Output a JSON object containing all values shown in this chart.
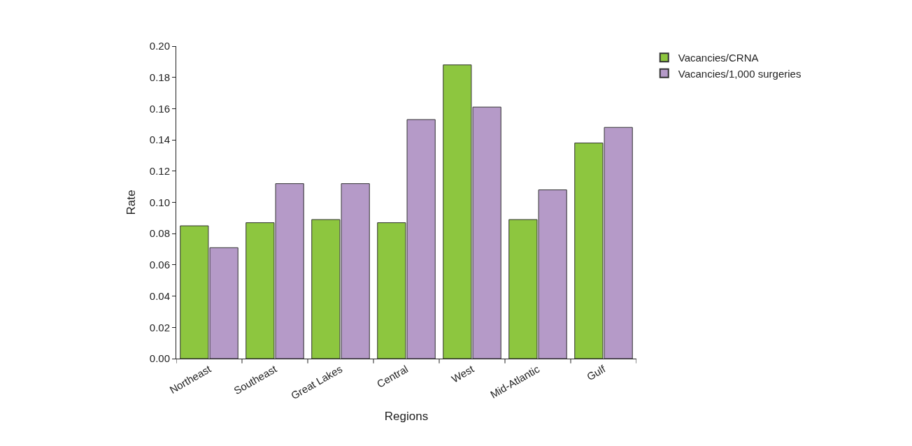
{
  "chart_data": {
    "type": "bar",
    "xlabel": "Regions",
    "ylabel": "Rate",
    "categories": [
      "Northeast",
      "Southeast",
      "Great Lakes",
      "Central",
      "West",
      "Mid-Atlantic",
      "Gulf"
    ],
    "series": [
      {
        "name": "Vacancies/CRNA",
        "color": "#8dc63f",
        "values": [
          0.085,
          0.087,
          0.089,
          0.087,
          0.188,
          0.089,
          0.138
        ]
      },
      {
        "name": "Vacancies/1,000 surgeries",
        "color": "#b59ac8",
        "values": [
          0.071,
          0.112,
          0.112,
          0.153,
          0.161,
          0.108,
          0.148
        ]
      }
    ],
    "ylim": [
      0,
      0.2
    ],
    "yticks": [
      {
        "value": 0,
        "label": "0.00"
      },
      {
        "value": 0.02,
        "label": "0.02"
      },
      {
        "value": 0.04,
        "label": "0.04"
      },
      {
        "value": 0.06,
        "label": "0.06"
      },
      {
        "value": 0.08,
        "label": "0.08"
      },
      {
        "value": 0.1,
        "label": "0.10"
      },
      {
        "value": 0.12,
        "label": "0.12"
      },
      {
        "value": 0.14,
        "label": "0.14"
      },
      {
        "value": 0.16,
        "label": "0.16"
      },
      {
        "value": 0.18,
        "label": "0.18"
      },
      {
        "value": 0.2,
        "label": "0.20"
      }
    ],
    "legend": "top right"
  }
}
